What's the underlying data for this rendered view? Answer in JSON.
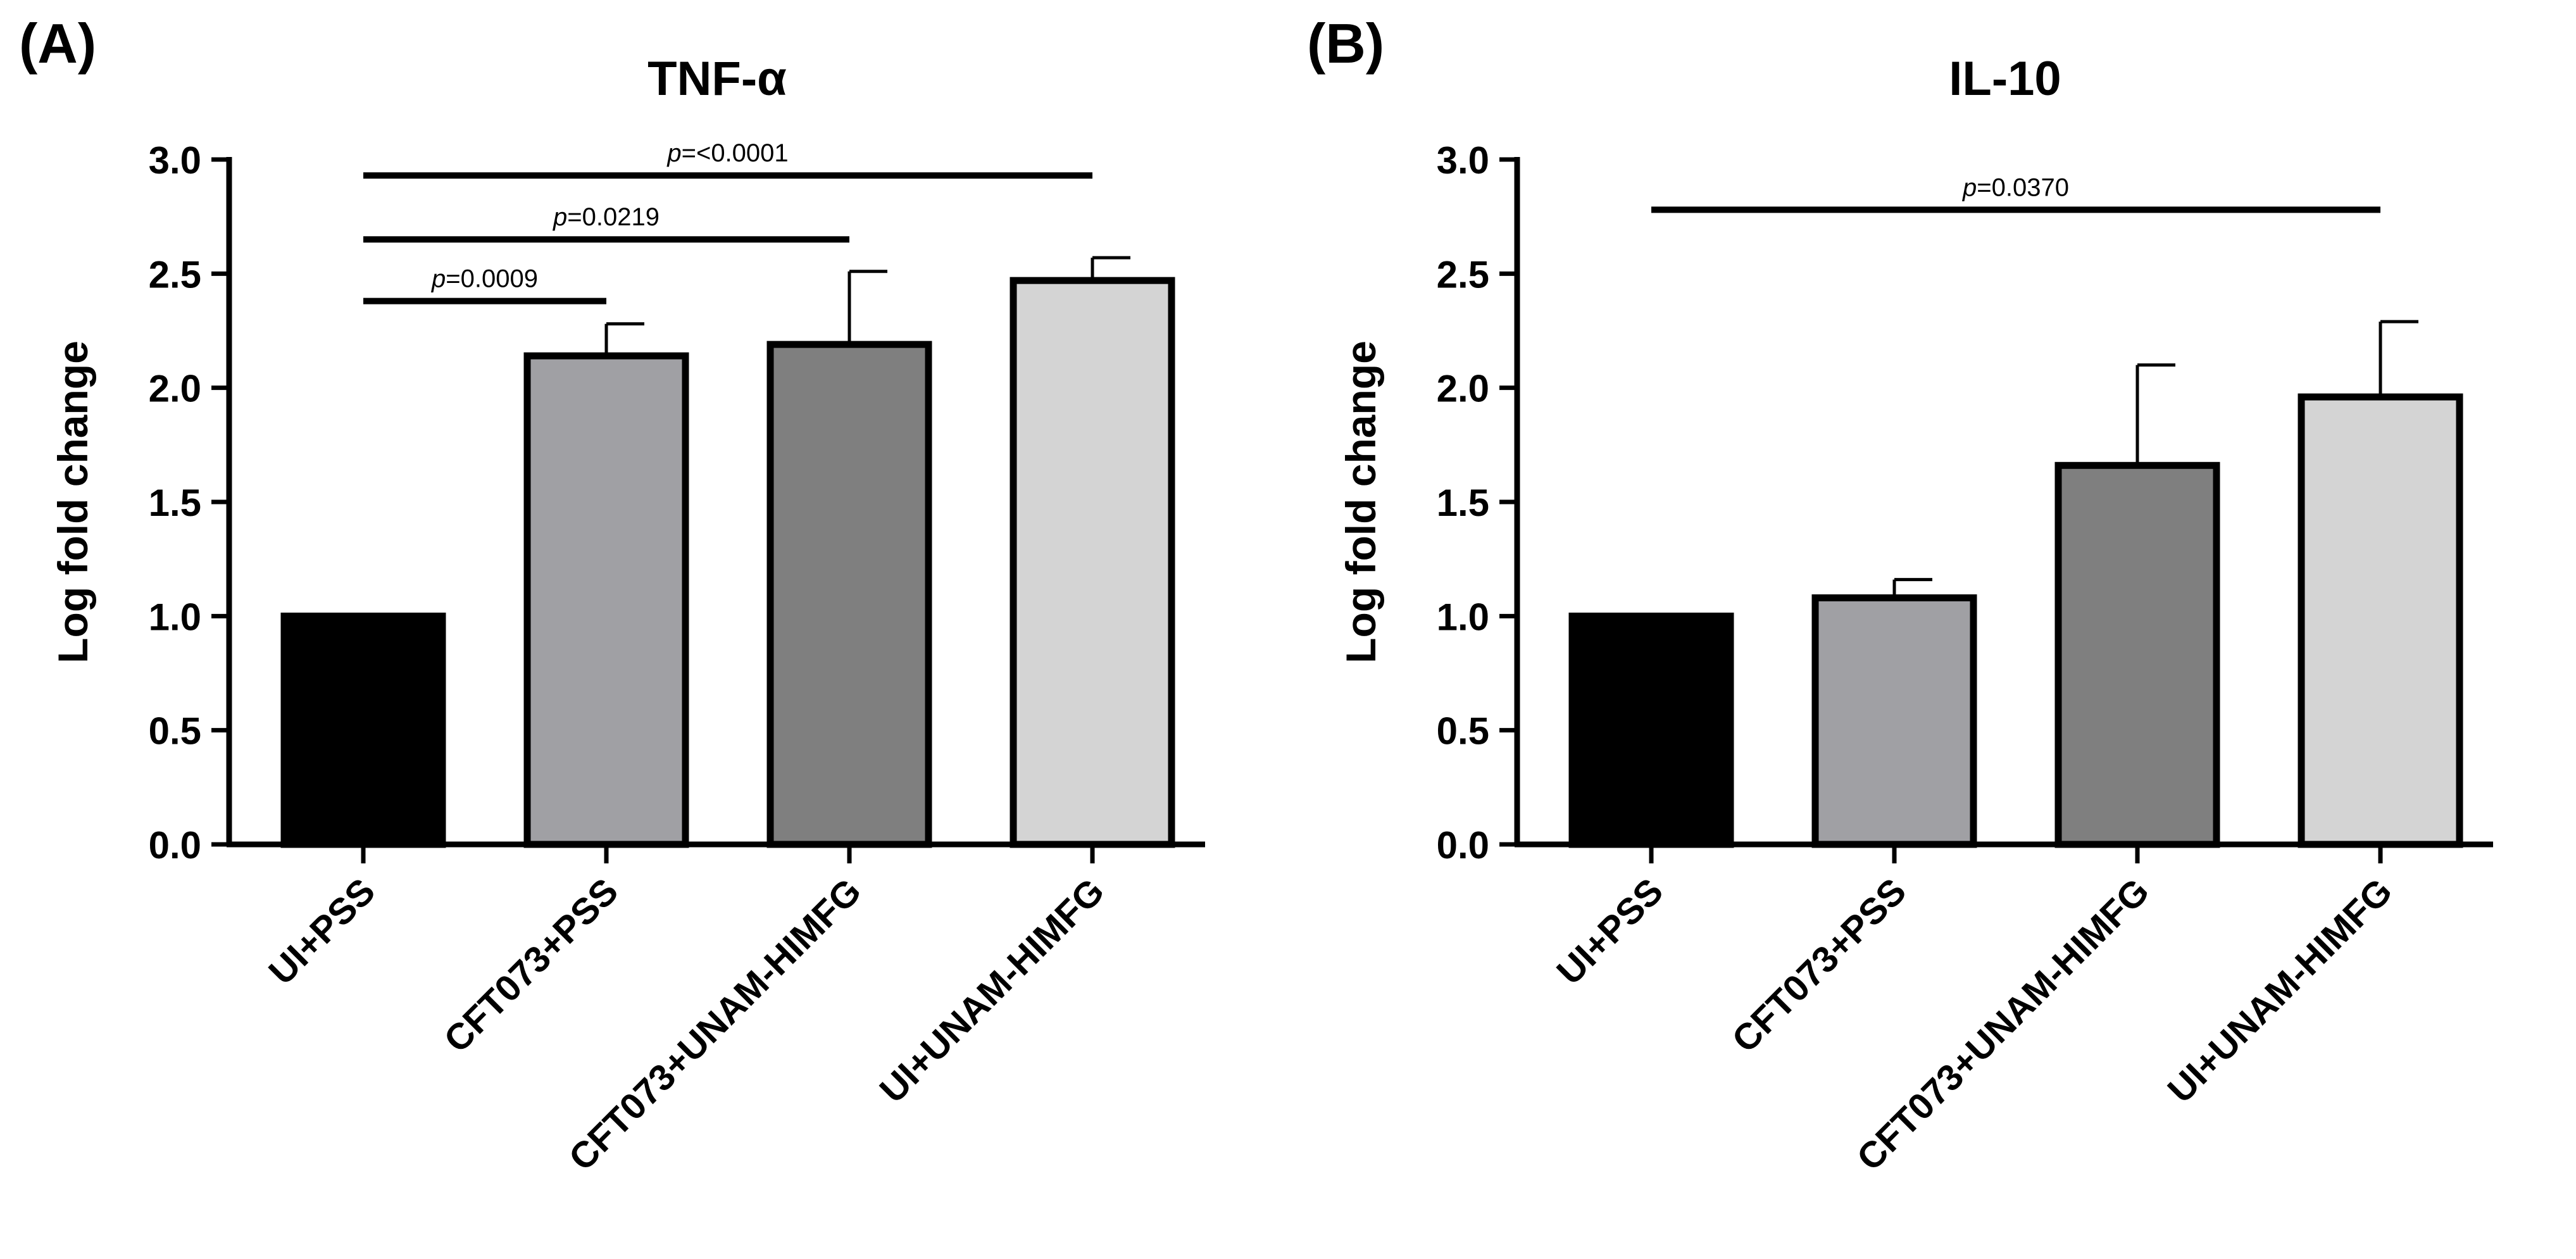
{
  "figure": {
    "panels": [
      {
        "letter": "(A)"
      },
      {
        "letter": "(B)"
      }
    ]
  },
  "chart_data": [
    {
      "type": "bar",
      "title": "TNF-α",
      "xlabel": "",
      "ylabel": "Log fold change",
      "ylim": [
        0,
        3.0
      ],
      "yticks": [
        "0.0",
        "0.5",
        "1.0",
        "1.5",
        "2.0",
        "2.5",
        "3.0"
      ],
      "categories": [
        "UI+PSS",
        "CFT073+PSS",
        "CFT073+UNAM-HIMFG",
        "UI+UNAM-HIMFG"
      ],
      "values": [
        1.0,
        2.14,
        2.19,
        2.47
      ],
      "errors": [
        0,
        0.14,
        0.32,
        0.1
      ],
      "bar_colors": [
        "#000000",
        "#a0a0a4",
        "#7f7f7f",
        "#d4d4d4"
      ],
      "comparisons": [
        {
          "from": 0,
          "to": 1,
          "y": 2.38,
          "prefix": "p",
          "label": "=0.0009"
        },
        {
          "from": 0,
          "to": 2,
          "y": 2.65,
          "prefix": "p",
          "label": "=0.0219"
        },
        {
          "from": 0,
          "to": 3,
          "y": 2.93,
          "prefix": "p",
          "label": "=<0.0001"
        }
      ]
    },
    {
      "type": "bar",
      "title": "IL-10",
      "xlabel": "",
      "ylabel": "Log fold change",
      "ylim": [
        0,
        3.0
      ],
      "yticks": [
        "0.0",
        "0.5",
        "1.0",
        "1.5",
        "2.0",
        "2.5",
        "3.0"
      ],
      "categories": [
        "UI+PSS",
        "CFT073+PSS",
        "CFT073+UNAM-HIMFG",
        "UI+UNAM-HIMFG"
      ],
      "values": [
        1.0,
        1.08,
        1.66,
        1.96
      ],
      "errors": [
        0,
        0.08,
        0.44,
        0.33
      ],
      "bar_colors": [
        "#000000",
        "#a0a0a4",
        "#7f7f7f",
        "#d4d4d4"
      ],
      "comparisons": [
        {
          "from": 0,
          "to": 3,
          "y": 2.78,
          "prefix": "p",
          "label": "=0.0370"
        }
      ]
    }
  ]
}
